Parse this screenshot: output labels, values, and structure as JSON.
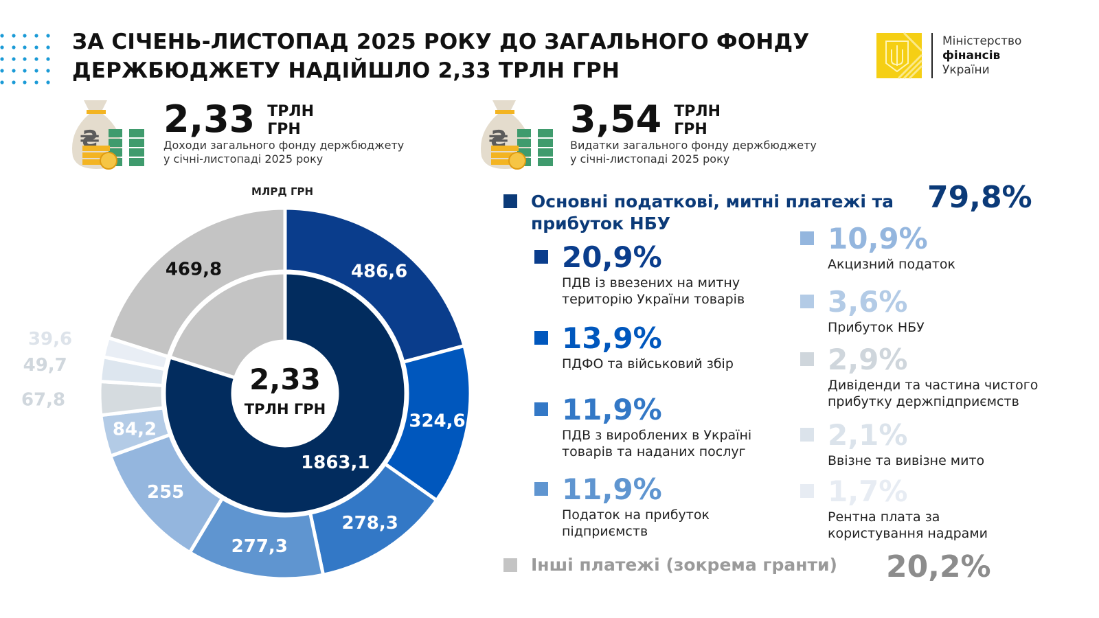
{
  "header": {
    "title_line1": "За січень-листопад 2025 року до загального фонду",
    "title_line2": "держбюджету надійшло 2,33 трлн грн",
    "logo": {
      "line1": "Міністерство",
      "line2": "фінансів",
      "line3": "України"
    },
    "accent_color": "#1a9ad6"
  },
  "kpis": [
    {
      "value": "2,33",
      "unit1": "ТРЛН",
      "unit2": "ГРН",
      "desc1": "Доходи загального фонду держбюджету",
      "desc2": "у січні-листопаді 2025 року",
      "icon": "money-bag-icon"
    },
    {
      "value": "3,54",
      "unit1": "ТРЛН",
      "unit2": "ГРН",
      "desc1": "Видатки загального фонду держбюджету",
      "desc2": "у січні-листопаді 2025 року",
      "icon": "money-bag-icon"
    }
  ],
  "legend": {
    "main_label": "Основні податкові, митні платежі та прибуток НБУ",
    "main_pct": "79,8%",
    "main_color": "#0b3a78",
    "left_items": [
      {
        "pct": "20,9%",
        "label1": "ПДВ із ввезених на митну",
        "label2": "територію України товарів",
        "color": "#0a3d8c"
      },
      {
        "pct": "13,9%",
        "label1": "ПДФО та військовий збір",
        "label2": "",
        "color": "#0057bd"
      },
      {
        "pct": "11,9%",
        "label1": "ПДВ з вироблених в Україні",
        "label2": "товарів та наданих послуг",
        "color": "#3378c6"
      },
      {
        "pct": "11,9%",
        "label1": "Податок на прибуток",
        "label2": "підприємств",
        "color": "#5f95d0"
      }
    ],
    "right_items": [
      {
        "pct": "10,9%",
        "label1": "Акцизний податок",
        "label2": "",
        "color": "#94b6de"
      },
      {
        "pct": "3,6%",
        "label1": "Прибуток НБУ",
        "label2": "",
        "color": "#b3cbe6"
      },
      {
        "pct": "2,9%",
        "label1": "Дивіденди та частина чистого",
        "label2": "прибутку держпідприємств",
        "color": "#cfd6dc"
      },
      {
        "pct": "2,1%",
        "label1": "Ввізне та вивізне мито",
        "label2": "",
        "color": "#dbe3eb"
      },
      {
        "pct": "1,7%",
        "label1": "Рентна плата за",
        "label2": "користування надрами",
        "color": "#e7ecf3"
      }
    ],
    "other_label": "Інші платежі (зокрема гранти)",
    "other_pct": "20,2%",
    "other_color": "#c4c4c4"
  },
  "chart_data": {
    "type": "pie",
    "variant": "two-ring donut",
    "unit_label": "МЛРД ГРН",
    "center_value": "2,33",
    "center_unit": "ТРЛН ГРН",
    "inner_ring": [
      {
        "value": 1863.1,
        "label": "1863,1",
        "color": "#022c5e"
      },
      {
        "value": 469.8,
        "label": "",
        "color": "#c4c4c4"
      }
    ],
    "outer_ring": [
      {
        "value": 486.6,
        "label": "486,6",
        "color": "#0a3d8c",
        "text_color": "#ffffff"
      },
      {
        "value": 324.6,
        "label": "324,6",
        "color": "#0057bd",
        "text_color": "#ffffff"
      },
      {
        "value": 278.3,
        "label": "278,3",
        "color": "#3378c6",
        "text_color": "#ffffff"
      },
      {
        "value": 277.3,
        "label": "277,3",
        "color": "#5f95d0",
        "text_color": "#ffffff"
      },
      {
        "value": 255,
        "label": "255",
        "color": "#94b6de",
        "text_color": "#ffffff"
      },
      {
        "value": 84.2,
        "label": "84,2",
        "color": "#b3cbe6",
        "text_color": "#ffffff"
      },
      {
        "value": 67.8,
        "label": "67,8",
        "color": "#d5dbdf",
        "text_color": "#d0d7dd"
      },
      {
        "value": 49.7,
        "label": "49,7",
        "color": "#dde6ef",
        "text_color": "#d0d7dd"
      },
      {
        "value": 39.6,
        "label": "39,6",
        "color": "#e9eef5",
        "text_color": "#dde3ea"
      },
      {
        "value": 469.8,
        "label": "469,8",
        "color": "#c4c4c4",
        "text_color": "#111111"
      }
    ]
  }
}
